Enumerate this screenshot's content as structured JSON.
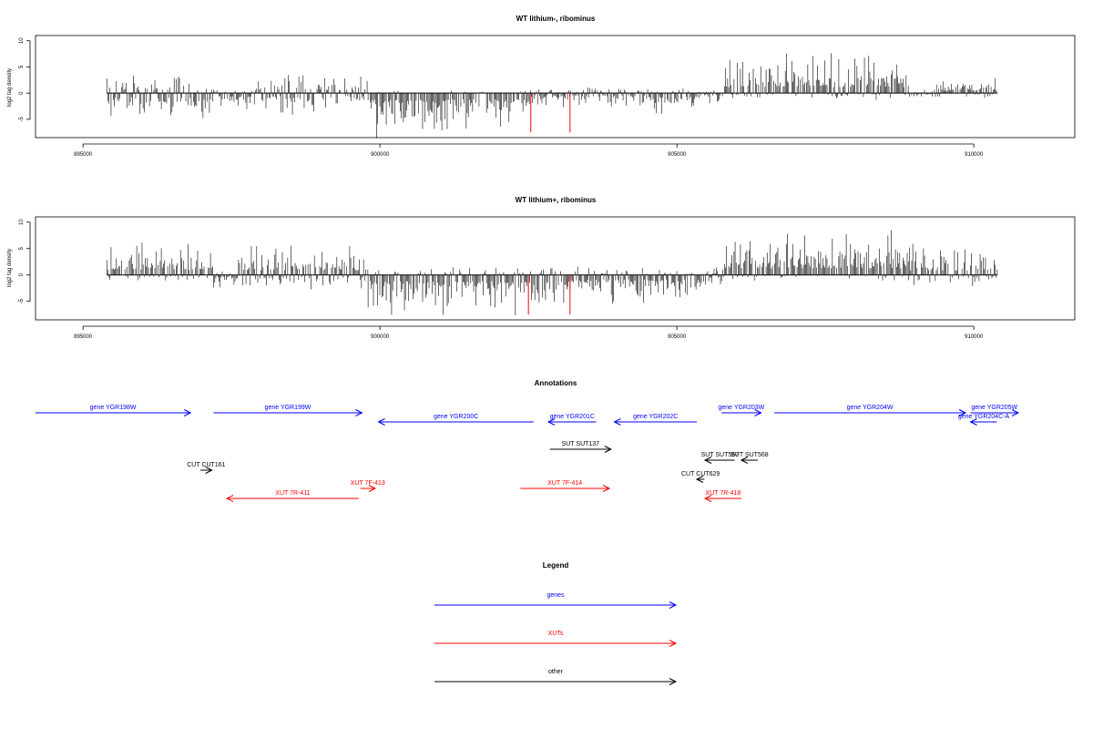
{
  "colors": {
    "gene": "#0000ff",
    "xut": "#ff0000",
    "other": "#000000",
    "signal": "#000000",
    "highlight": "#ff0000"
  },
  "chart_data": [
    {
      "type": "bar",
      "title": "WT lithium-, ribominus",
      "ylabel": "log2 tag density",
      "xlim": [
        894200,
        911700
      ],
      "ylim": [
        -8.5,
        11
      ],
      "xticks": [
        895000,
        900000,
        905000,
        910000
      ],
      "xtick_labels": [
        "895000",
        "900000",
        "905000",
        "910000"
      ],
      "yticks": [
        -5,
        0,
        5,
        10
      ],
      "ytick_labels": [
        "-5",
        "0",
        "5",
        "10"
      ],
      "data_range": [
        895400,
        910400
      ],
      "profile": [
        [
          895400,
          897200,
          1.6,
          2.2
        ],
        [
          897200,
          897900,
          0.6,
          1.6
        ],
        [
          897900,
          898400,
          1.4,
          1.6
        ],
        [
          898400,
          899100,
          1.9,
          1.9
        ],
        [
          899100,
          899800,
          1.6,
          1.4
        ],
        [
          899800,
          901200,
          0.3,
          3.6
        ],
        [
          901200,
          902300,
          0.3,
          3.3
        ],
        [
          902300,
          902600,
          0.7,
          1.8
        ],
        [
          902600,
          904600,
          0.5,
          1.2
        ],
        [
          904600,
          905300,
          0.4,
          2.0
        ],
        [
          905300,
          905800,
          0.5,
          0.9
        ],
        [
          905800,
          908900,
          3.2,
          0.6
        ],
        [
          908900,
          909300,
          0.3,
          0.3
        ],
        [
          909300,
          910400,
          1.3,
          0.6
        ]
      ],
      "highlights": [
        {
          "x": 902540,
          "y": -7.5
        },
        {
          "x": 903200,
          "y": -7.5
        }
      ]
    },
    {
      "type": "bar",
      "title": "WT lithium+, ribominus",
      "ylabel": "log2 tag density",
      "xlim": [
        894200,
        911700
      ],
      "ylim": [
        -8.5,
        11
      ],
      "xticks": [
        895000,
        900000,
        905000,
        910000
      ],
      "xtick_labels": [
        "895000",
        "900000",
        "905000",
        "910000"
      ],
      "yticks": [
        -5,
        0,
        5,
        10
      ],
      "ytick_labels": [
        "-5",
        "0",
        "5",
        "10"
      ],
      "data_range": [
        895400,
        910400
      ],
      "profile": [
        [
          895400,
          897200,
          2.8,
          0.6
        ],
        [
          897200,
          897600,
          0.4,
          1.0
        ],
        [
          897600,
          899800,
          2.6,
          1.2
        ],
        [
          899800,
          901200,
          0.9,
          3.3
        ],
        [
          901200,
          902500,
          0.8,
          3.4
        ],
        [
          902500,
          903500,
          1.0,
          3.0
        ],
        [
          903500,
          904800,
          0.6,
          2.4
        ],
        [
          904800,
          905500,
          0.5,
          2.5
        ],
        [
          905500,
          905800,
          0.8,
          0.8
        ],
        [
          905800,
          908900,
          3.6,
          0.5
        ],
        [
          908900,
          910400,
          2.4,
          0.9
        ]
      ],
      "highlights": [
        {
          "x": 902500,
          "y": -7.5
        },
        {
          "x": 903200,
          "y": -7.5
        }
      ]
    }
  ],
  "annotations": {
    "title": "Annotations",
    "features": [
      {
        "label": "gene YGR198W",
        "type": "gene",
        "dir": "+",
        "start": 894400,
        "end": 899100,
        "row": 0
      },
      {
        "label": "gene YGR199W",
        "type": "gene",
        "dir": "+",
        "start": 899800,
        "end": 904300,
        "row": 0
      },
      {
        "label": "gene YGR200C",
        "type": "gene",
        "dir": "-",
        "start": 904800,
        "end": 909500,
        "row": 1
      },
      {
        "label": "gene YGR201C",
        "type": "gene",
        "dir": "-",
        "start": 909950,
        "end": 911400,
        "row": 1
      },
      {
        "label": "gene YGR202C",
        "type": "gene",
        "dir": "-",
        "start": 911950,
        "end": 914450,
        "row": 1
      },
      {
        "label": "gene YGR203W",
        "type": "gene",
        "dir": "+",
        "start": 915200,
        "end": 916400,
        "row": 0
      },
      {
        "label": "gene YGR204W",
        "type": "gene",
        "dir": "+",
        "start": 916800,
        "end": 922600,
        "row": 0
      },
      {
        "label": "gene YGR204C-A",
        "type": "gene",
        "dir": "-",
        "start": 922750,
        "end": 923550,
        "row": 1
      },
      {
        "label": "gene YGR205W",
        "type": "gene",
        "dir": "+",
        "start": 922750,
        "end": 924200,
        "row": 0
      },
      {
        "label": "SUT SUT137",
        "type": "other",
        "dir": "+",
        "start": 910000,
        "end": 911850,
        "row": 3
      },
      {
        "label": "SUT SUT567",
        "type": "other",
        "dir": "-",
        "start": 914700,
        "end": 915600,
        "row": 4
      },
      {
        "label": "SUT SUT568",
        "type": "other",
        "dir": "-",
        "start": 915800,
        "end": 916300,
        "row": 4
      },
      {
        "label": "CUT CUT161",
        "type": "other",
        "dir": "+",
        "start": 899400,
        "end": 899750,
        "row": 5
      },
      {
        "label": "CUT CUT629",
        "type": "other",
        "dir": "-",
        "start": 914450,
        "end": 914680,
        "row": 6
      },
      {
        "label": "XUT 7R-411",
        "type": "xut",
        "dir": "-",
        "start": 900200,
        "end": 904200,
        "row": 8
      },
      {
        "label": "XUT 7F-413",
        "type": "xut",
        "dir": "+",
        "start": 904250,
        "end": 904700,
        "row": 7
      },
      {
        "label": "XUT 7F-414",
        "type": "xut",
        "dir": "+",
        "start": 909100,
        "end": 911800,
        "row": 7
      },
      {
        "label": "XUT 7R-418",
        "type": "xut",
        "dir": "-",
        "start": 914700,
        "end": 915800,
        "row": 8
      }
    ]
  },
  "legend": {
    "title": "Legend",
    "items": [
      {
        "label": "genes",
        "type": "gene"
      },
      {
        "label": "XUTs",
        "type": "xut"
      },
      {
        "label": "other",
        "type": "other"
      }
    ]
  }
}
